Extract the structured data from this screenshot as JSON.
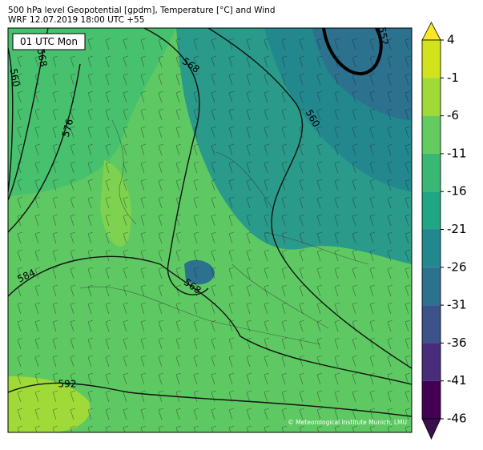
{
  "header": {
    "title": "500 hPa level Geopotential [gpdm], Temperature [°C] and Wind",
    "subtitle": "WRF 12.07.2019 18:00 UTC +55"
  },
  "map": {
    "time_label": "01 UTC Mon",
    "contour_labels": [
      "560",
      "568",
      "576",
      "568",
      "560",
      "552",
      "584",
      "568",
      "592"
    ],
    "credit": "© Meteorological Institute Munich, LMU"
  },
  "colorbar": {
    "ticks": [
      4,
      -1,
      -6,
      -11,
      -16,
      -21,
      -26,
      -31,
      -36,
      -41,
      -46
    ],
    "colors": [
      "#d2e21b",
      "#a0da39",
      "#63cb5f",
      "#3bb775",
      "#21a685",
      "#23888e",
      "#2c718e",
      "#3b528b",
      "#472d7b",
      "#440154"
    ],
    "over_color": "#fde725",
    "under_color": "#3b0f4e"
  }
}
